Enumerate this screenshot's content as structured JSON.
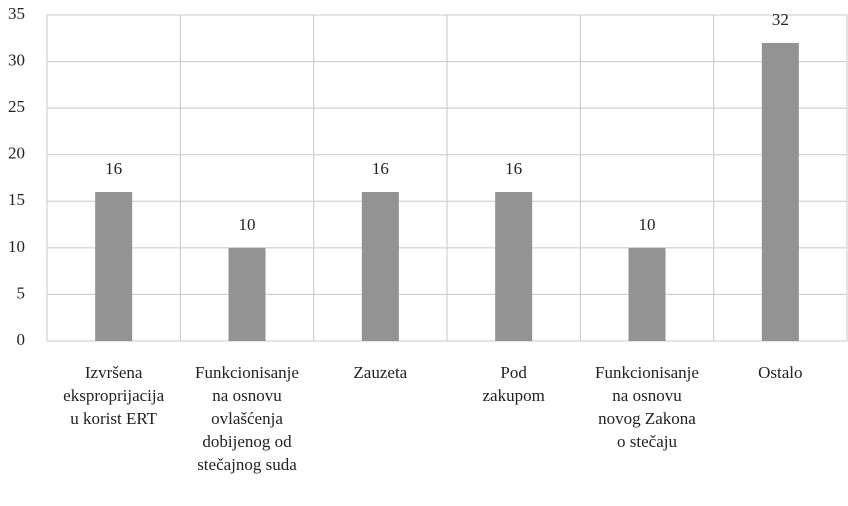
{
  "chart_data": {
    "type": "bar",
    "categories": [
      "Izvršena\nekspropri­jacija\nu korist ERT",
      "Funkcionisanje\nna osnovu\novlašćenja\ndobijenog od\nstečajnog suda",
      "Zauzeta",
      "Pod\nzakupom",
      "Funkcionisanje\nna osnovu\nnovog Zakona\no stečaju",
      "Ostalo"
    ],
    "values": [
      16,
      10,
      16,
      16,
      10,
      32
    ],
    "color": "#939393",
    "ylim": [
      0,
      35
    ],
    "yticks": [
      0,
      5,
      10,
      15,
      20,
      25,
      30,
      35
    ],
    "grid": true
  }
}
